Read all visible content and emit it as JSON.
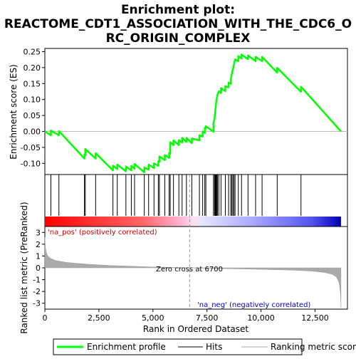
{
  "chart_data": {
    "type": "line",
    "title": "Enrichment plot: REACTOME_CDT1_ASSOCIATION_WITH_THE_CDC6_ORC_ORIGIN_COMPLEX",
    "title_lines": [
      "Enrichment plot:",
      "REACTOME_CDT1_ASSOCIATION_WITH_THE_CDC6_O",
      "RC_ORIGIN_COMPLEX"
    ],
    "xlabel": "Rank in Ordered Dataset",
    "ylabel_top": "Enrichment score (ES)",
    "ylabel_bottom": "Ranked list metric (PreRanked)",
    "xlim": [
      0,
      14000
    ],
    "x_ticks": [
      0,
      2500,
      5000,
      7500,
      10000,
      12500
    ],
    "x_tick_labels": [
      "0",
      "2,500",
      "5,000",
      "7,500",
      "10,000",
      "12,500"
    ],
    "es_ylim": [
      -0.135,
      0.26
    ],
    "es_ticks": [
      -0.1,
      -0.05,
      0.0,
      0.05,
      0.1,
      0.15,
      0.2,
      0.25
    ],
    "es_tick_labels": [
      "-0.10",
      "-0.05",
      "0.00",
      "0.05",
      "0.10",
      "0.15",
      "0.20",
      "0.25"
    ],
    "metric_ylim": [
      -3.5,
      3.5
    ],
    "metric_ticks": [
      -3,
      -2,
      -1,
      0,
      1,
      2,
      3
    ],
    "metric_tick_labels": [
      "-3",
      "-2",
      "-1",
      "0",
      "1",
      "2",
      "3"
    ],
    "zero_cross_rank": 6700,
    "annotations": {
      "zero_cross": "Zero cross at 6700",
      "pos_label": "'na_pos' (positively correlated)",
      "neg_label": "'na_neg' (negatively correlated)"
    },
    "colors": {
      "es_line": "#00ff00",
      "hits": "#000000",
      "metric_fill": "#aaaaaa",
      "pos_label": "#cc0000",
      "neg_label": "#0000cc",
      "zero_line": "#bbbbbb"
    },
    "series": [
      {
        "name": "Enrichment profile",
        "color": "#00ff00"
      },
      {
        "name": "Hits",
        "color": "#000000"
      },
      {
        "name": "Ranking metric scores",
        "color": "#aaaaaa"
      }
    ],
    "hits": [
      280,
      650,
      1830,
      1870,
      2350,
      3150,
      3350,
      3750,
      4000,
      4150,
      4600,
      4800,
      5050,
      5250,
      5300,
      5550,
      5750,
      5800,
      5950,
      6200,
      6350,
      6550,
      6800,
      7150,
      7300,
      7400,
      7450,
      7800,
      7850,
      7870,
      7890,
      7910,
      7930,
      7960,
      7990,
      8050,
      8150,
      8350,
      8500,
      8600,
      8650,
      8700,
      8750,
      8800,
      8950,
      9100,
      9400,
      9750,
      10050,
      10750,
      11850
    ],
    "es_points": [
      [
        0,
        0.0
      ],
      [
        280,
        -0.012
      ],
      [
        281,
        0.003
      ],
      [
        650,
        -0.012
      ],
      [
        651,
        0.001
      ],
      [
        1830,
        -0.085
      ],
      [
        1831,
        -0.072
      ],
      [
        1870,
        -0.075
      ],
      [
        1871,
        -0.055
      ],
      [
        2350,
        -0.085
      ],
      [
        2351,
        -0.068
      ],
      [
        3150,
        -0.122
      ],
      [
        3151,
        -0.107
      ],
      [
        3350,
        -0.118
      ],
      [
        3351,
        -0.104
      ],
      [
        3750,
        -0.125
      ],
      [
        3751,
        -0.11
      ],
      [
        4000,
        -0.122
      ],
      [
        4001,
        -0.108
      ],
      [
        4150,
        -0.117
      ],
      [
        4151,
        -0.102
      ],
      [
        4600,
        -0.128
      ],
      [
        4601,
        -0.113
      ],
      [
        4800,
        -0.12
      ],
      [
        4801,
        -0.104
      ],
      [
        5050,
        -0.115
      ],
      [
        5051,
        -0.1
      ],
      [
        5250,
        -0.108
      ],
      [
        5251,
        -0.093
      ],
      [
        5300,
        -0.095
      ],
      [
        5301,
        -0.078
      ],
      [
        5550,
        -0.09
      ],
      [
        5551,
        -0.074
      ],
      [
        5750,
        -0.083
      ],
      [
        5751,
        -0.067
      ],
      [
        5800,
        -0.07
      ],
      [
        5801,
        -0.034
      ],
      [
        5950,
        -0.043
      ],
      [
        5951,
        -0.028
      ],
      [
        6200,
        -0.043
      ],
      [
        6201,
        -0.027
      ],
      [
        6350,
        -0.035
      ],
      [
        6351,
        -0.02
      ],
      [
        6550,
        -0.033
      ],
      [
        6551,
        -0.02
      ],
      [
        6800,
        -0.037
      ],
      [
        6801,
        -0.022
      ],
      [
        7150,
        -0.028
      ],
      [
        7151,
        -0.012
      ],
      [
        7300,
        -0.016
      ],
      [
        7301,
        0.0
      ],
      [
        7400,
        -0.005
      ],
      [
        7401,
        0.012
      ],
      [
        7450,
        0.01
      ],
      [
        7451,
        0.016
      ],
      [
        7800,
        -0.001
      ],
      [
        7801,
        0.026
      ],
      [
        7850,
        0.04
      ],
      [
        7870,
        0.055
      ],
      [
        7890,
        0.068
      ],
      [
        7910,
        0.08
      ],
      [
        7930,
        0.093
      ],
      [
        7960,
        0.105
      ],
      [
        7990,
        0.116
      ],
      [
        8050,
        0.126
      ],
      [
        8150,
        0.12
      ],
      [
        8151,
        0.136
      ],
      [
        8350,
        0.126
      ],
      [
        8351,
        0.142
      ],
      [
        8500,
        0.138
      ],
      [
        8501,
        0.153
      ],
      [
        8600,
        0.149
      ],
      [
        8601,
        0.164
      ],
      [
        8650,
        0.18
      ],
      [
        8700,
        0.195
      ],
      [
        8750,
        0.21
      ],
      [
        8800,
        0.226
      ],
      [
        8950,
        0.22
      ],
      [
        8951,
        0.236
      ],
      [
        9100,
        0.228
      ],
      [
        9101,
        0.241
      ],
      [
        9400,
        0.226
      ],
      [
        9401,
        0.238
      ],
      [
        9750,
        0.22
      ],
      [
        9751,
        0.234
      ],
      [
        10050,
        0.22
      ],
      [
        10051,
        0.234
      ],
      [
        10750,
        0.184
      ],
      [
        10751,
        0.199
      ],
      [
        11850,
        0.124
      ],
      [
        11851,
        0.14
      ],
      [
        13700,
        0.0
      ]
    ],
    "metric_curve": [
      [
        0,
        2.6
      ],
      [
        20,
        1.8
      ],
      [
        60,
        1.35
      ],
      [
        120,
        1.05
      ],
      [
        250,
        0.82
      ],
      [
        500,
        0.62
      ],
      [
        1000,
        0.46
      ],
      [
        2000,
        0.3
      ],
      [
        3000,
        0.2
      ],
      [
        4000,
        0.13
      ],
      [
        5000,
        0.07
      ],
      [
        6000,
        0.03
      ],
      [
        6700,
        0.0
      ],
      [
        7500,
        -0.03
      ],
      [
        8500,
        -0.07
      ],
      [
        9500,
        -0.11
      ],
      [
        10500,
        -0.15
      ],
      [
        11500,
        -0.2
      ],
      [
        12300,
        -0.27
      ],
      [
        12900,
        -0.38
      ],
      [
        13300,
        -0.55
      ],
      [
        13500,
        -0.8
      ],
      [
        13620,
        -1.3
      ],
      [
        13680,
        -2.3
      ],
      [
        13700,
        -3.4
      ]
    ]
  }
}
